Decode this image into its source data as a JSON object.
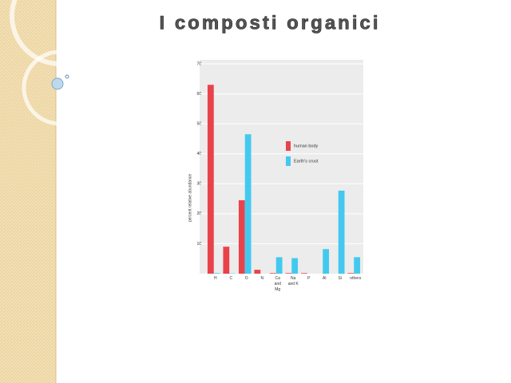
{
  "chart_data": {
    "type": "bar",
    "title": "I composti organici",
    "ylabel": "percent relative abundance",
    "categories": [
      "H",
      "C",
      "O",
      "N",
      "Ca and Mg",
      "Na and K",
      "P",
      "Al",
      "Si",
      "others"
    ],
    "series": [
      {
        "name": "human body",
        "color": "#e8434b",
        "values": [
          63,
          9,
          24.5,
          1.3,
          0.2,
          0.2,
          0.2,
          0,
          0,
          0.2
        ]
      },
      {
        "name": "Earth's crust",
        "color": "#43c9f0",
        "values": [
          0.2,
          0.1,
          46.5,
          0,
          5.5,
          5.2,
          0,
          8.2,
          27.7,
          5.5
        ]
      }
    ],
    "ylim": [
      0,
      70
    ],
    "yticks": [
      10,
      20,
      30,
      40,
      50,
      60,
      70
    ],
    "grid": true
  }
}
